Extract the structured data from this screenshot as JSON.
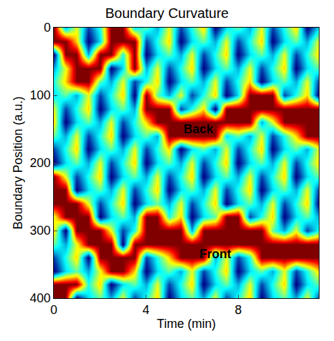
{
  "chart_data": {
    "type": "heatmap",
    "title": "Boundary Curvature",
    "x_label": "Time (min)",
    "y_label": "Boundary Position (a.u.)",
    "x": [
      0,
      0.5,
      1,
      1.5,
      2,
      2.5,
      3,
      3.5,
      4,
      4.5,
      5,
      5.5,
      6,
      6.5,
      7,
      7.5,
      8,
      8.5,
      9,
      9.5,
      10,
      10.5,
      11,
      11.5
    ],
    "y": [
      0,
      20,
      40,
      60,
      80,
      100,
      120,
      140,
      160,
      180,
      200,
      220,
      240,
      260,
      280,
      300,
      320,
      340,
      360,
      380,
      400
    ],
    "cells": [
      [
        0.95,
        0.4,
        0.65,
        0.3,
        0.5,
        0.95,
        0.95,
        0.45,
        0.55,
        0.4,
        0.65,
        0.3,
        0.5,
        0.7,
        0.2,
        0.45,
        0.55,
        0.4,
        0.65,
        0.3,
        0.5,
        0.7,
        0.2,
        0.45
      ],
      [
        0.95,
        0.95,
        0.7,
        0.2,
        0.45,
        0.95,
        0.95,
        0.95,
        0.3,
        0.5,
        0.7,
        0.2,
        0.45,
        0.55,
        0.4,
        0.65,
        0.3,
        0.5,
        0.7,
        0.2,
        0.45,
        0.55,
        0.4,
        0.65
      ],
      [
        0.2,
        0.95,
        0.95,
        0.4,
        0.95,
        0.95,
        0.5,
        0.95,
        0.2,
        0.45,
        0.55,
        0.4,
        0.65,
        0.3,
        0.5,
        0.7,
        0.2,
        0.45,
        0.55,
        0.4,
        0.65,
        0.3,
        0.5,
        0.7
      ],
      [
        0.4,
        0.65,
        0.95,
        0.95,
        0.95,
        0.2,
        0.45,
        0.95,
        0.4,
        0.65,
        0.3,
        0.5,
        0.7,
        0.2,
        0.45,
        0.55,
        0.4,
        0.65,
        0.3,
        0.5,
        0.7,
        0.2,
        0.45,
        0.55
      ],
      [
        0.5,
        0.7,
        0.95,
        0.95,
        0.55,
        0.4,
        0.65,
        0.3,
        0.5,
        0.7,
        0.2,
        0.45,
        0.55,
        0.4,
        0.65,
        0.3,
        0.5,
        0.7,
        0.2,
        0.45,
        0.55,
        0.4,
        0.65,
        0.3
      ],
      [
        0.45,
        0.55,
        0.4,
        0.65,
        0.3,
        0.5,
        0.7,
        0.2,
        0.95,
        0.55,
        0.4,
        0.65,
        0.3,
        0.5,
        0.7,
        0.2,
        0.45,
        0.95,
        0.95,
        0.95,
        0.3,
        0.5,
        0.7,
        0.2
      ],
      [
        0.65,
        0.3,
        0.5,
        0.7,
        0.2,
        0.45,
        0.55,
        0.4,
        0.95,
        0.95,
        0.95,
        0.3,
        0.5,
        0.7,
        0.2,
        0.95,
        0.95,
        0.95,
        0.95,
        0.95,
        0.95,
        0.95,
        0.95,
        0.95
      ],
      [
        0.7,
        0.2,
        0.45,
        0.55,
        0.4,
        0.65,
        0.3,
        0.5,
        0.7,
        0.95,
        0.95,
        0.95,
        0.95,
        0.95,
        0.95,
        0.95,
        0.95,
        0.95,
        0.4,
        0.65,
        0.95,
        0.95,
        0.95,
        0.95
      ],
      [
        0.55,
        0.4,
        0.65,
        0.3,
        0.5,
        0.7,
        0.2,
        0.45,
        0.55,
        0.4,
        0.95,
        0.95,
        0.95,
        0.95,
        0.95,
        0.45,
        0.55,
        0.4,
        0.65,
        0.3,
        0.5,
        0.7,
        0.95,
        0.95
      ],
      [
        0.3,
        0.5,
        0.7,
        0.2,
        0.45,
        0.55,
        0.4,
        0.65,
        0.3,
        0.5,
        0.7,
        0.2,
        0.45,
        0.55,
        0.4,
        0.65,
        0.3,
        0.5,
        0.7,
        0.2,
        0.45,
        0.55,
        0.4,
        0.65
      ],
      [
        0.2,
        0.45,
        0.55,
        0.4,
        0.65,
        0.3,
        0.5,
        0.7,
        0.2,
        0.45,
        0.55,
        0.4,
        0.65,
        0.3,
        0.5,
        0.7,
        0.2,
        0.45,
        0.55,
        0.4,
        0.65,
        0.3,
        0.5,
        0.7
      ],
      [
        0.95,
        0.65,
        0.3,
        0.5,
        0.7,
        0.2,
        0.45,
        0.55,
        0.4,
        0.65,
        0.3,
        0.5,
        0.7,
        0.2,
        0.45,
        0.55,
        0.4,
        0.65,
        0.3,
        0.5,
        0.7,
        0.2,
        0.45,
        0.55
      ],
      [
        0.95,
        0.95,
        0.2,
        0.45,
        0.55,
        0.4,
        0.65,
        0.3,
        0.5,
        0.7,
        0.2,
        0.45,
        0.55,
        0.4,
        0.65,
        0.3,
        0.5,
        0.7,
        0.2,
        0.45,
        0.55,
        0.4,
        0.65,
        0.3
      ],
      [
        0.95,
        0.95,
        0.95,
        0.65,
        0.3,
        0.5,
        0.7,
        0.2,
        0.45,
        0.55,
        0.4,
        0.65,
        0.3,
        0.5,
        0.7,
        0.2,
        0.45,
        0.55,
        0.4,
        0.65,
        0.3,
        0.5,
        0.7,
        0.2
      ],
      [
        0.65,
        0.95,
        0.95,
        0.95,
        0.2,
        0.45,
        0.55,
        0.4,
        0.95,
        0.95,
        0.5,
        0.7,
        0.2,
        0.45,
        0.55,
        0.95,
        0.95,
        0.3,
        0.5,
        0.7,
        0.2,
        0.45,
        0.55,
        0.4
      ],
      [
        0.7,
        0.2,
        0.95,
        0.95,
        0.95,
        0.65,
        0.3,
        0.5,
        0.95,
        0.95,
        0.95,
        0.95,
        0.4,
        0.95,
        0.95,
        0.95,
        0.95,
        0.95,
        0.95,
        0.55,
        0.4,
        0.65,
        0.3,
        0.5
      ],
      [
        0.55,
        0.4,
        0.65,
        0.95,
        0.95,
        0.95,
        0.2,
        0.95,
        0.95,
        0.95,
        0.95,
        0.95,
        0.95,
        0.95,
        0.95,
        0.95,
        0.95,
        0.95,
        0.95,
        0.95,
        0.95,
        0.95,
        0.95,
        0.95
      ],
      [
        0.3,
        0.5,
        0.7,
        0.2,
        0.95,
        0.95,
        0.95,
        0.95,
        0.3,
        0.5,
        0.7,
        0.95,
        0.95,
        0.95,
        0.4,
        0.65,
        0.3,
        0.5,
        0.95,
        0.95,
        0.95,
        0.95,
        0.95,
        0.95
      ],
      [
        0.2,
        0.45,
        0.55,
        0.4,
        0.65,
        0.95,
        0.95,
        0.7,
        0.2,
        0.45,
        0.55,
        0.4,
        0.65,
        0.3,
        0.5,
        0.7,
        0.2,
        0.45,
        0.55,
        0.4,
        0.65,
        0.3,
        0.5,
        0.7
      ],
      [
        0.95,
        0.95,
        0.95,
        0.5,
        0.7,
        0.2,
        0.45,
        0.55,
        0.4,
        0.65,
        0.3,
        0.5,
        0.7,
        0.2,
        0.45,
        0.55,
        0.4,
        0.65,
        0.3,
        0.5,
        0.7,
        0.2,
        0.45,
        0.55
      ],
      [
        0.95,
        0.95,
        0.2,
        0.45,
        0.55,
        0.4,
        0.65,
        0.3,
        0.5,
        0.7,
        0.2,
        0.45,
        0.55,
        0.4,
        0.65,
        0.3,
        0.5,
        0.7,
        0.2,
        0.45,
        0.55,
        0.4,
        0.65,
        0.3
      ]
    ],
    "xlim": [
      0,
      11.5
    ],
    "ylim": [
      400,
      0
    ],
    "xticks": [
      0,
      4,
      8
    ],
    "yticks": [
      0,
      100,
      200,
      300,
      400
    ],
    "annotations": [
      {
        "text": "Back",
        "x": 6.3,
        "y": 150
      },
      {
        "text": "Front",
        "x": 7.0,
        "y": 335
      }
    ]
  }
}
